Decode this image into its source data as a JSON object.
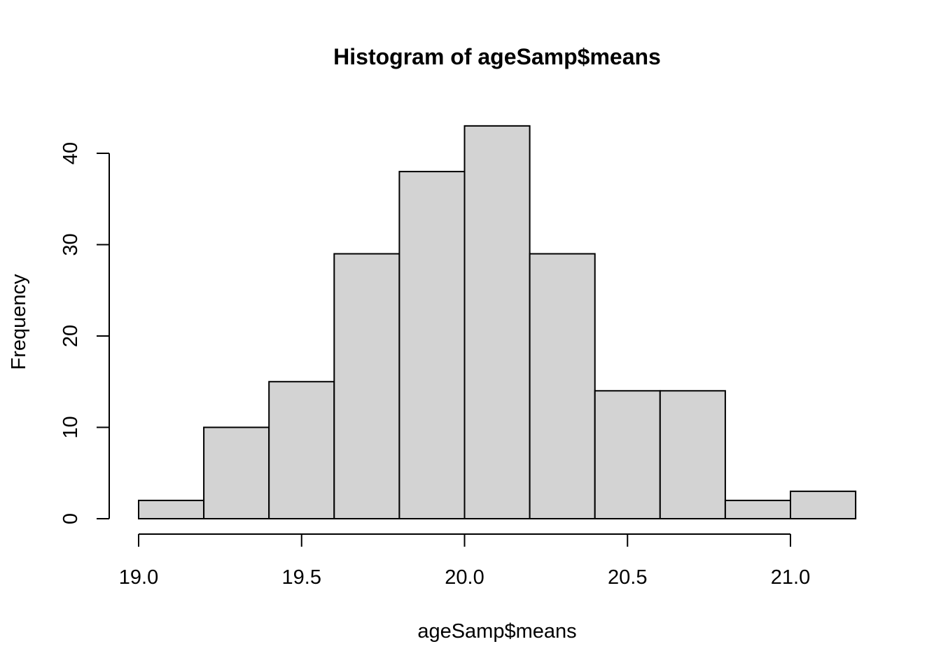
{
  "chart_data": {
    "type": "bar",
    "title": "Histogram of ageSamp$means",
    "xlabel": "ageSamp$means",
    "ylabel": "Frequency",
    "bin_edges": [
      19.0,
      19.2,
      19.4,
      19.6,
      19.8,
      20.0,
      20.2,
      20.4,
      20.6,
      20.8,
      21.0,
      21.2
    ],
    "values": [
      2,
      10,
      15,
      29,
      38,
      43,
      29,
      14,
      14,
      2,
      3
    ],
    "xlim": [
      19.0,
      21.2
    ],
    "ylim": [
      0,
      43
    ],
    "x_ticks": [
      19.0,
      19.5,
      20.0,
      20.5,
      21.0
    ],
    "x_tick_labels": [
      "19.0",
      "19.5",
      "20.0",
      "20.5",
      "21.0"
    ],
    "y_ticks": [
      0,
      10,
      20,
      30,
      40
    ],
    "y_tick_labels": [
      "0",
      "10",
      "20",
      "30",
      "40"
    ],
    "bar_fill": "#d3d3d3",
    "bar_stroke": "#000000",
    "grid": false,
    "legend": "none"
  }
}
